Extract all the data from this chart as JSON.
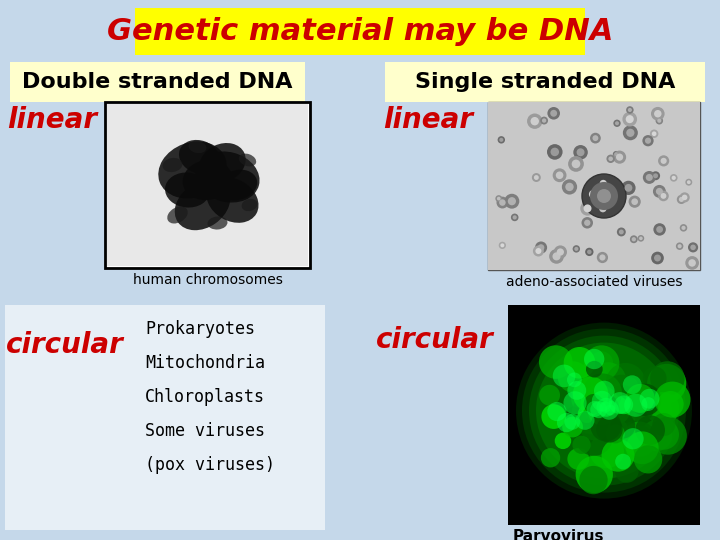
{
  "bg_color": "#c5d8ea",
  "title_text": "Genetic material may be DNA",
  "title_bg": "#ffff00",
  "title_color": "#cc0000",
  "left_header": "Double stranded DNA",
  "right_header": "Single stranded DNA",
  "header_bg": "#ffffcc",
  "header_color": "#000000",
  "red_color": "#cc0000",
  "black_color": "#000000",
  "white_color": "#ffffff",
  "left_linear_label": "linear",
  "right_linear_label": "linear",
  "left_circular_label": "circular",
  "right_circular_label": "circular",
  "left_image_caption": "human chromosomes",
  "right_image_caption": "adeno-associated viruses",
  "left_circular_lines": [
    "Prokaryotes",
    "Mitochondria",
    "Chloroplasts",
    "Some viruses",
    "(pox viruses)"
  ],
  "right_circular_caption": "Parvovirus",
  "fontsize_title": 22,
  "fontsize_header": 16,
  "fontsize_label_large": 20,
  "fontsize_caption": 10,
  "fontsize_list": 12
}
